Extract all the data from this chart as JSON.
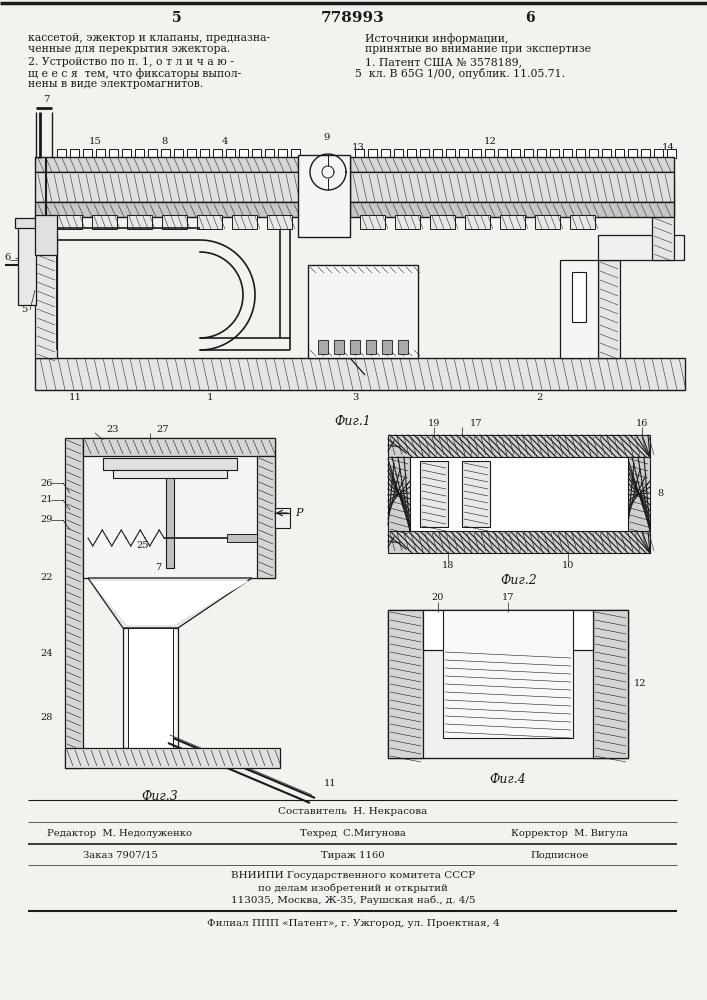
{
  "page_bg": "#f2f2ee",
  "title_number": "778993",
  "page_left": "5",
  "page_right": "6",
  "draw_color": "#1a1a1a",
  "fig1_caption": "Фиг.1",
  "fig2_caption": "Фиг.2",
  "fig3_caption": "Фиг.3",
  "fig4_caption": "Фиг.4",
  "footer_sestavitel": "Составитель  Н. Некрасова",
  "footer_redaktor": "Редактор  М. Недолуженко",
  "footer_tehred": "Техред  С.Мигунова",
  "footer_korrektor": "Корректор  М. Вигула",
  "footer_zakaz": "Заказ 7907/15",
  "footer_tirazh": "Тираж 1160",
  "footer_podpisnoe": "Подписное",
  "footer_vniip1": "ВНИИПИ Государственного комитета СССР",
  "footer_vniip2": "по делам изобретений и открытий",
  "footer_addr": "113035, Москва, Ж-35, Раушская наб., д. 4/5",
  "footer_filial": "Филиал ППП «Патент», г. Ужгород, ул. Проектная, 4"
}
